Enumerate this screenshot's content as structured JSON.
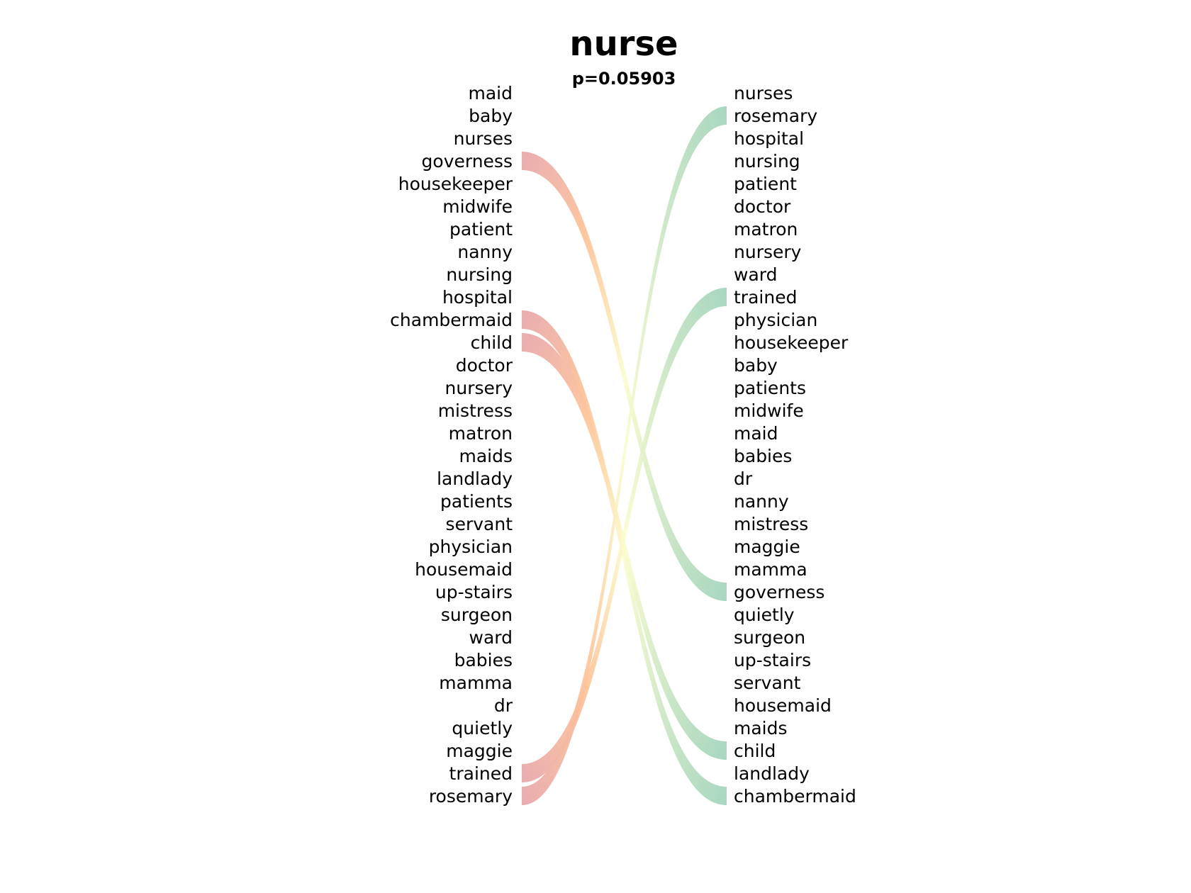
{
  "chart_data": {
    "type": "bump",
    "title": "nurse",
    "subtitle": "p=0.05903",
    "left_words": [
      "maid",
      "baby",
      "nurses",
      "governess",
      "housekeeper",
      "midwife",
      "patient",
      "nanny",
      "nursing",
      "hospital",
      "chambermaid",
      "child",
      "doctor",
      "nursery",
      "mistress",
      "matron",
      "maids",
      "landlady",
      "patients",
      "servant",
      "physician",
      "housemaid",
      "up-stairs",
      "surgeon",
      "ward",
      "babies",
      "mamma",
      "dr",
      "quietly",
      "maggie",
      "trained",
      "rosemary"
    ],
    "right_words": [
      "nurses",
      "rosemary",
      "hospital",
      "nursing",
      "patient",
      "doctor",
      "matron",
      "nursery",
      "ward",
      "trained",
      "physician",
      "housekeeper",
      "baby",
      "patients",
      "midwife",
      "maid",
      "babies",
      "dr",
      "nanny",
      "mistress",
      "maggie",
      "mamma",
      "governess",
      "quietly",
      "surgeon",
      "up-stairs",
      "servant",
      "housemaid",
      "maids",
      "child",
      "landlady",
      "chambermaid"
    ],
    "links": [
      {
        "word": "governess",
        "from_rank": 4,
        "to_rank": 23
      },
      {
        "word": "chambermaid",
        "from_rank": 11,
        "to_rank": 32
      },
      {
        "word": "child",
        "from_rank": 12,
        "to_rank": 30
      },
      {
        "word": "trained",
        "from_rank": 31,
        "to_rank": 10
      },
      {
        "word": "rosemary",
        "from_rank": 32,
        "to_rank": 2
      }
    ],
    "colors": {
      "left": "#e8a8ad",
      "middle": "#fbfccf",
      "right": "#a3d4bd",
      "left_mid": "#fdc49a"
    }
  }
}
